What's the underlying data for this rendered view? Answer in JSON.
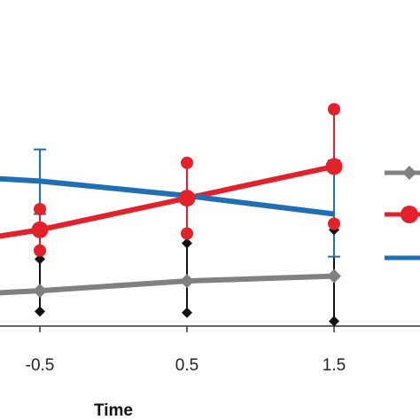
{
  "chart_data": {
    "type": "line",
    "xlabel": "Time",
    "ylabel": "",
    "x_ticks": [
      "-0.5",
      "0.5",
      "1.5"
    ],
    "xlim": [
      -1.3,
      2.0
    ],
    "ylim": [
      0,
      11.8
    ],
    "legend_position": "right",
    "series": [
      {
        "key": "gray",
        "color": "#808080",
        "marker": "diamond",
        "x": [
          -1.5,
          -0.5,
          0.5,
          1.5
        ],
        "values": [
          1.15,
          1.45,
          1.85,
          2.05
        ],
        "error_low": [
          null,
          0.6,
          0.55,
          0.2
        ],
        "error_high": [
          null,
          2.75,
          3.4,
          3.95
        ],
        "extra_points": [
          {
            "x": -0.5,
            "y": 0.6
          },
          {
            "x": -0.5,
            "y": 2.75
          },
          {
            "x": 0.5,
            "y": 0.55
          },
          {
            "x": 0.5,
            "y": 3.4
          },
          {
            "x": 1.5,
            "y": 0.2
          },
          {
            "x": 1.5,
            "y": 3.95
          }
        ]
      },
      {
        "key": "red",
        "color": "#e3212b",
        "marker": "circle",
        "x": [
          -1.5,
          -0.5,
          0.5,
          1.5
        ],
        "values": [
          3.0,
          3.95,
          5.25,
          6.55
        ],
        "error_low": [
          null,
          3.1,
          3.8,
          4.2
        ],
        "error_high": [
          null,
          4.8,
          6.7,
          8.9
        ],
        "extra_points": [
          {
            "x": -0.5,
            "y": 3.1
          },
          {
            "x": -0.5,
            "y": 4.8
          },
          {
            "x": 0.5,
            "y": 3.8
          },
          {
            "x": 0.5,
            "y": 6.7
          },
          {
            "x": 1.5,
            "y": 4.2
          },
          {
            "x": 1.5,
            "y": 8.9
          }
        ]
      },
      {
        "key": "blue",
        "color": "#1f6fb5",
        "marker": "none",
        "x": [
          -1.5,
          -0.5,
          0.5,
          1.5
        ],
        "values": [
          6.3,
          5.95,
          5.35,
          4.6
        ],
        "error_low": [
          null,
          4.6,
          null,
          2.85
        ],
        "error_high": [
          null,
          7.25,
          null,
          6.8
        ]
      }
    ]
  }
}
